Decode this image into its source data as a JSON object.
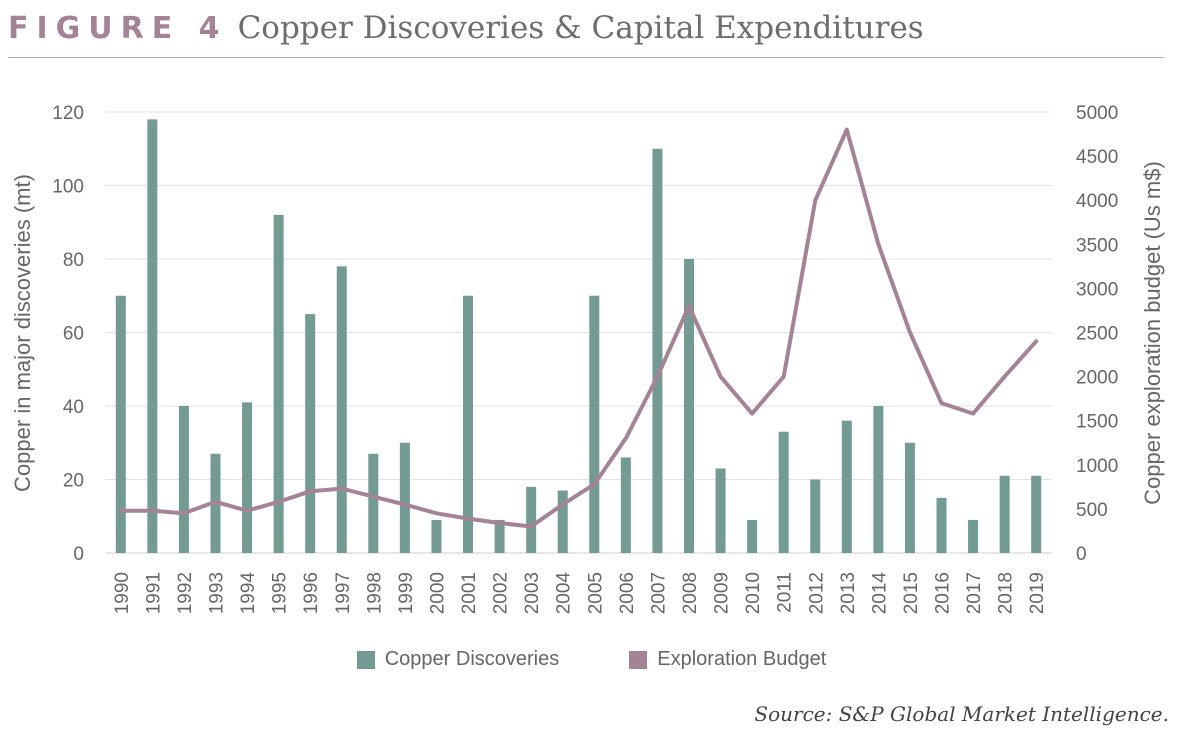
{
  "figure": {
    "label": "FIGURE 4",
    "title": "Copper Discoveries & Capital Expenditures",
    "source": "Source: S&P Global Market Intelligence.",
    "label_color": "#a48397"
  },
  "chart_data": {
    "type": "bar",
    "categories": [
      "1990",
      "1991",
      "1992",
      "1993",
      "1994",
      "1995",
      "1996",
      "1997",
      "1998",
      "1999",
      "2000",
      "2001",
      "2002",
      "2003",
      "2004",
      "2005",
      "2006",
      "2007",
      "2008",
      "2009",
      "2010",
      "2011",
      "2012",
      "2013",
      "2014",
      "2015",
      "2016",
      "2017",
      "2018",
      "2019"
    ],
    "series": [
      {
        "name": "Copper Discoveries",
        "type": "bar",
        "axis": "left",
        "color": "#739b93",
        "values": [
          70,
          118,
          40,
          27,
          41,
          92,
          65,
          78,
          27,
          30,
          9,
          70,
          9,
          18,
          17,
          70,
          26,
          110,
          80,
          23,
          9,
          33,
          20,
          36,
          40,
          30,
          15,
          9,
          21,
          21
        ]
      },
      {
        "name": "Exploration Budget",
        "type": "line",
        "axis": "right",
        "color": "#a48397",
        "values": [
          480,
          480,
          450,
          580,
          480,
          580,
          700,
          730,
          640,
          550,
          450,
          390,
          340,
          300,
          550,
          780,
          1300,
          2000,
          2800,
          2000,
          1580,
          2000,
          4000,
          4800,
          3500,
          2500,
          1700,
          1580,
          2000,
          2400
        ]
      }
    ],
    "ylabel": "Copper in major discoveries (mt)",
    "ylim": [
      0,
      120
    ],
    "yticks": [
      "0",
      "20",
      "40",
      "60",
      "80",
      "100",
      "120"
    ],
    "y2label": "Copper exploration budget (Us m$)",
    "y2lim": [
      0,
      5000
    ],
    "y2ticks": [
      "0",
      "500",
      "1000",
      "1500",
      "2000",
      "2500",
      "3000",
      "3500",
      "4000",
      "4500",
      "5000"
    ],
    "grid": true,
    "legend_position": "bottom"
  }
}
